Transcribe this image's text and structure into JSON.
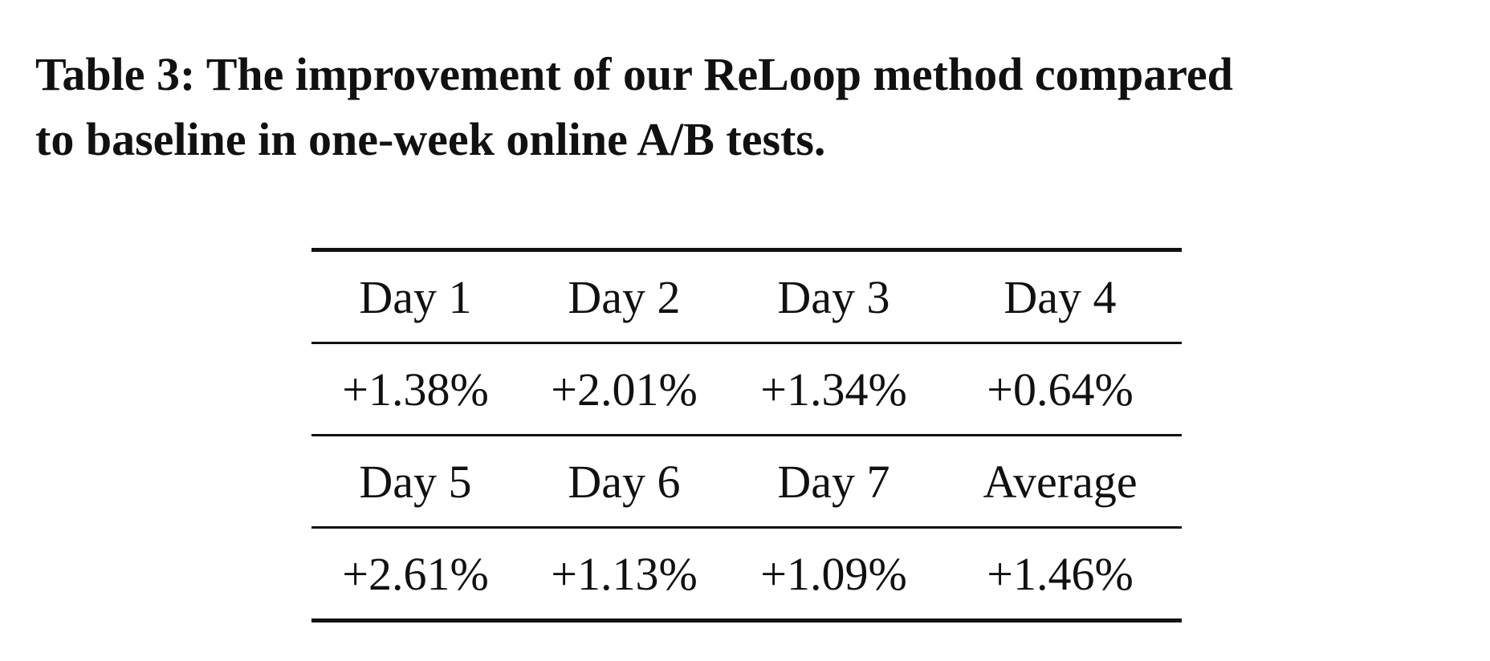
{
  "caption": {
    "line1": "Table 3: The improvement of our ReLoop method compared",
    "line2": "to baseline in one-week online A/B tests."
  },
  "table": {
    "rows": [
      [
        "Day 1",
        "Day 2",
        "Day 3",
        "Day 4"
      ],
      [
        "+1.38%",
        "+2.01%",
        "+1.34%",
        "+0.64%"
      ],
      [
        "Day 5",
        "Day 6",
        "Day 7",
        "Average"
      ],
      [
        "+2.61%",
        "+1.13%",
        "+1.09%",
        "+1.46%"
      ]
    ]
  }
}
